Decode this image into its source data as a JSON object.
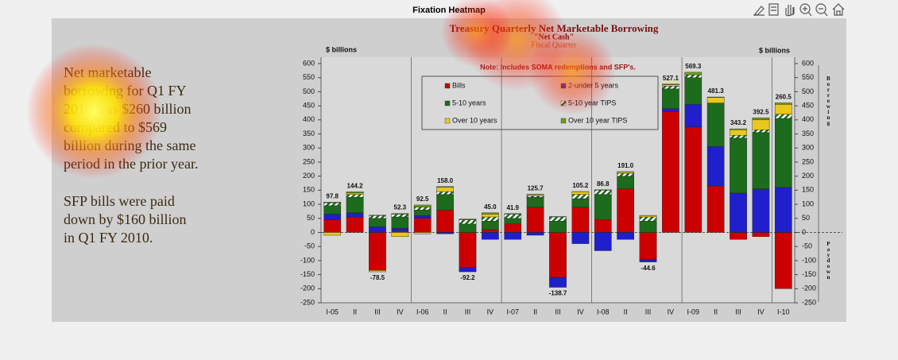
{
  "window": {
    "title": "Fixation Heatmap"
  },
  "text_blocks": [
    [
      "Net marketable",
      "borrowing for Q1 FY",
      "2010 was $260 billion",
      "compared to $569",
      "billion during the same",
      "period in the prior year."
    ],
    [
      "SFP bills were paid",
      "down by $160 billion",
      "in Q1 FY 2010."
    ]
  ],
  "chart_data": {
    "type": "stacked-bar",
    "title": "Treasury Quarterly Net Marketable Borrowing",
    "subtitle": "\"Net Cash\"",
    "x_label": "Fiscal Quarter",
    "y_label": "$ billions",
    "y2_label": "$ billions",
    "note": "Note: Includes SOMA redemptions and SFP's.",
    "side_labels": [
      "Borrowing",
      "Paydown"
    ],
    "categories": [
      "I-05",
      "II",
      "III",
      "IV",
      "I-06",
      "II",
      "III",
      "IV",
      "I-07",
      "II",
      "III",
      "IV",
      "I-08",
      "II",
      "III",
      "IV",
      "I-09",
      "II",
      "III",
      "IV",
      "I-10"
    ],
    "series": [
      {
        "name": "Bills",
        "color": "#cc0000",
        "values": [
          45,
          55,
          -135,
          5,
          50,
          80,
          -125,
          10,
          30,
          90,
          -160,
          90,
          45,
          155,
          -95,
          430,
          375,
          165,
          -25,
          -15,
          -200
        ]
      },
      {
        "name": "2-under 5 years",
        "color": "#1f1fcc",
        "values": [
          20,
          15,
          20,
          10,
          10,
          -5,
          -15,
          -25,
          -25,
          -10,
          -35,
          -40,
          -65,
          -25,
          -10,
          10,
          80,
          140,
          140,
          155,
          160
        ]
      },
      {
        "name": "5-10 years",
        "color": "#1d6b1d",
        "values": [
          30,
          55,
          30,
          40,
          20,
          55,
          30,
          30,
          20,
          35,
          40,
          30,
          90,
          45,
          40,
          70,
          95,
          155,
          195,
          200,
          245
        ]
      },
      {
        "name": "5-10 year TIPS",
        "color": "#1d6b1d",
        "hatched": true,
        "values": [
          10,
          10,
          10,
          10,
          10,
          10,
          15,
          15,
          15,
          5,
          15,
          15,
          15,
          10,
          15,
          10,
          10,
          0,
          10,
          10,
          15
        ]
      },
      {
        "name": "Over 10 years",
        "color": "#e8c81c",
        "values": [
          -10,
          5,
          -5,
          -15,
          -5,
          15,
          0,
          10,
          0,
          5,
          0,
          10,
          0,
          5,
          5,
          5,
          0,
          20,
          20,
          35,
          35
        ]
      },
      {
        "name": "Over 10 year TIPS",
        "color": "#6f9c1f",
        "values": [
          2.8,
          4.2,
          1.5,
          2.3,
          7.5,
          3,
          2.8,
          5,
          1.9,
          0.7,
          1.3,
          0.2,
          1.8,
          1,
          0.4,
          2.1,
          9.3,
          1.3,
          3.2,
          7.5,
          5.5
        ]
      }
    ],
    "totals": {
      "values": [
        97.8,
        144.2,
        -78.5,
        52.3,
        92.5,
        158,
        -92.2,
        45,
        41.9,
        125.7,
        -138.7,
        105.2,
        86.8,
        191,
        -44.6,
        527.1,
        569.3,
        481.3,
        343.2,
        392.5,
        260.5
      ],
      "value_labels": [
        "97.8",
        "144.2",
        "-78.5",
        "52.3",
        "92.5",
        "158.0",
        "-92.2",
        "45.0",
        "41.9",
        "125.7",
        "-138.7",
        "105.2",
        "86.8",
        "191.0",
        "-44.6",
        "527.1",
        "569.3",
        "481.3",
        "343.2",
        "392.5",
        "260.5"
      ]
    },
    "ylim": [
      -250,
      600
    ],
    "yticks": [
      -250,
      -200,
      -150,
      -100,
      -50,
      0,
      50,
      100,
      150,
      200,
      250,
      300,
      350,
      400,
      450,
      500,
      550,
      600
    ],
    "year_groups": 4
  }
}
